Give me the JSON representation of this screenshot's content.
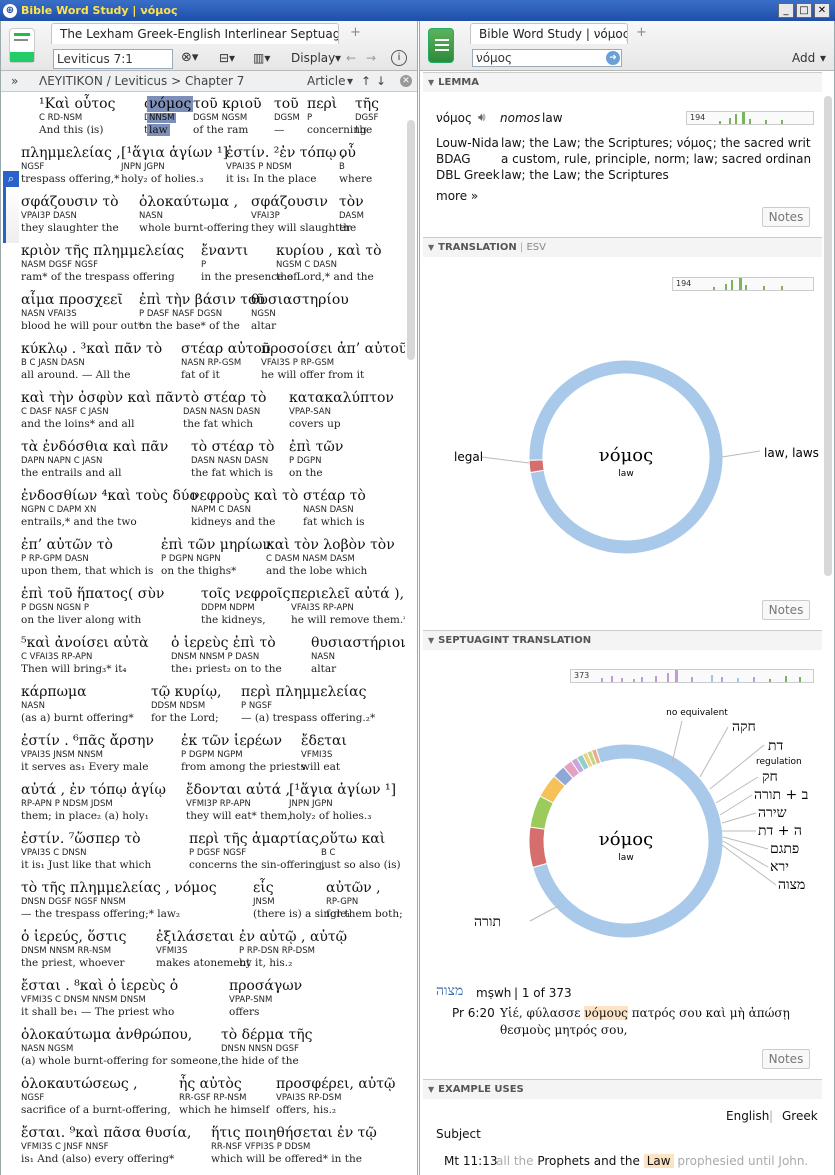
{
  "window": {
    "title": "Bible Word Study | νόμος"
  },
  "left": {
    "tab": "The Lexham Greek-English Interlinear Septuagint",
    "reference": "Leviticus 7:1",
    "display_label": "Display",
    "breadcrumb": "ΛΕΥΙΤΙΚΟΝ / Leviticus > Chapter 7",
    "article_label": "Article",
    "lines": [
      {
        "y": 96,
        "w": [
          {
            "x": 22,
            "g": "¹Καὶ οὗτος",
            "m": "C RD-NSM",
            "e": "And this (is)"
          },
          {
            "x": 127,
            "g": "ὁ",
            "m": "DNSM",
            "e": "the"
          },
          {
            "x": 130,
            "g": "νόμος",
            "m": "NNSM",
            "e": "law",
            "hl": true
          },
          {
            "x": 176,
            "g": "τοῦ κριοῦ",
            "m": "DGSM NGSM",
            "e": "of the ram"
          },
          {
            "x": 257,
            "g": "τοῦ",
            "m": "DGSM",
            "e": "—"
          },
          {
            "x": 290,
            "g": "περὶ",
            "m": "P",
            "e": "concerning"
          },
          {
            "x": 338,
            "g": "τῆς",
            "m": "DGSF",
            "e": "the"
          }
        ]
      },
      {
        "y": 145,
        "w": [
          {
            "x": 0,
            "g": "πλημμελείας ,",
            "m": "NGSF",
            "e": "trespass offering,*"
          },
          {
            "x": 100,
            "g": "[¹ἅγια ἁγίων ¹]",
            "m": "JNPN JGPN",
            "e": "holy₂ of holies.₃"
          },
          {
            "x": 205,
            "g": "ἐστίν. ²ἐν τόπῳ ,",
            "m": "VPAI3S P NDSM",
            "e": "it is₁ In the place"
          },
          {
            "x": 318,
            "g": "οὗ",
            "m": "B",
            "e": "where"
          }
        ]
      },
      {
        "y": 194,
        "w": [
          {
            "x": 0,
            "g": "σφάζουσιν τὸ",
            "m": "VPAI3P DASN",
            "e": "they slaughter the"
          },
          {
            "x": 118,
            "g": "ὁλοκαύτωμα ,",
            "m": "NASN",
            "e": "whole burnt-offering"
          },
          {
            "x": 230,
            "g": "σφάζουσιν",
            "m": "VFAI3P",
            "e": "they will slaughter"
          },
          {
            "x": 318,
            "g": "τὸν",
            "m": "DASM",
            "e": "the"
          }
        ]
      },
      {
        "y": 243,
        "w": [
          {
            "x": 0,
            "g": "κριὸν τῆς πλημμελείας",
            "m": "NASM DGSF NGSF",
            "e": "ram* of the trespass offering"
          },
          {
            "x": 180,
            "g": "ἔναντι",
            "m": "P",
            "e": "in the presence of"
          },
          {
            "x": 255,
            "g": "κυρίου , καὶ τὸ",
            "m": "NGSM C DASN",
            "e": "the Lord,* and the"
          }
        ]
      },
      {
        "y": 292,
        "w": [
          {
            "x": 0,
            "g": "αἷμα προσχεεῖ",
            "m": "NASN VFAI3S",
            "e": "blood he will pour out*"
          },
          {
            "x": 118,
            "g": "ἐπὶ τὴν βάσιν τοῦ",
            "m": "P DASF NASF DGSN",
            "e": "on the base* of the"
          },
          {
            "x": 230,
            "g": "θυσιαστηρίου",
            "m": "NGSN",
            "e": "altar"
          }
        ]
      },
      {
        "y": 341,
        "w": [
          {
            "x": 0,
            "g": "κύκλῳ . ³καὶ πᾶν τὸ",
            "m": "B C JASN DASN",
            "e": "all around. — All the"
          },
          {
            "x": 160,
            "g": "στέαρ αὐτοῦ",
            "m": "NASN RP-GSM",
            "e": "fat of it"
          },
          {
            "x": 240,
            "g": "προσοίσει ἀπ’ αὐτοῦ,",
            "m": "VFAI3S P RP-GSM",
            "e": "he will offer from it"
          }
        ]
      },
      {
        "y": 390,
        "w": [
          {
            "x": 0,
            "g": "καὶ τὴν ὀσφὺν καὶ πᾶν",
            "m": "C DASF NASF C JASN",
            "e": "and the loins* and all"
          },
          {
            "x": 162,
            "g": "τὸ στέαρ τὸ",
            "m": "DASN NASN DASN",
            "e": "the fat which"
          },
          {
            "x": 268,
            "g": "κατακαλύπτον",
            "m": "VPAP-SAN",
            "e": "covers up"
          }
        ]
      },
      {
        "y": 439,
        "w": [
          {
            "x": 0,
            "g": "τὰ ἐνδόσθια καὶ πᾶν",
            "m": "DAPN NAPN C JASN",
            "e": "the entrails and all"
          },
          {
            "x": 170,
            "g": "τὸ στέαρ τὸ",
            "m": "DASN NASN DASN",
            "e": "the fat which is"
          },
          {
            "x": 268,
            "g": "ἐπὶ τῶν",
            "m": "P DGPN",
            "e": "on the"
          }
        ]
      },
      {
        "y": 488,
        "w": [
          {
            "x": 0,
            "g": "ἐνδοσθίων ⁴καὶ τοὺς δύο",
            "m": "NGPN C DAPM XN",
            "e": "entrails,* and the two"
          },
          {
            "x": 170,
            "g": "νεφροὺς καὶ τὸ",
            "m": "NAPM C DASN",
            "e": "kidneys and the"
          },
          {
            "x": 282,
            "g": "στέαρ τὸ",
            "m": "NASN DASN",
            "e": "fat which is"
          }
        ]
      },
      {
        "y": 537,
        "w": [
          {
            "x": 0,
            "g": "ἐπ’ αὐτῶν τὸ",
            "m": "P RP-GPM DASN",
            "e": "upon them, that which is"
          },
          {
            "x": 140,
            "g": "ἐπὶ τῶν μηρίων",
            "m": "P DGPN NGPN",
            "e": "on the thighs*"
          },
          {
            "x": 245,
            "g": "καὶ τὸν λοβὸν τὸν",
            "m": "C DASM NASM DASM",
            "e": "and the lobe which"
          }
        ]
      },
      {
        "y": 586,
        "w": [
          {
            "x": 0,
            "g": "ἐπὶ τοῦ ἥπατος( σὺν",
            "m": "P DGSN NGSN P",
            "e": "on the liver along with"
          },
          {
            "x": 180,
            "g": "τοῖς νεφροῖς",
            "m": "DDPM NDPM",
            "e": "the kidneys,"
          },
          {
            "x": 270,
            "g": "περιελεῖ αὐτά ),",
            "m": "VFAI3S RP-APN",
            "e": "he will remove them.*"
          }
        ]
      },
      {
        "y": 635,
        "w": [
          {
            "x": 0,
            "g": "⁵καὶ ἀνοίσει αὐτὰ",
            "m": "C VFAI3S RP-APN",
            "e": "Then will bring₃* it₄"
          },
          {
            "x": 150,
            "g": "ὁ ἱερεὺς ἐπὶ τὸ",
            "m": "DNSM NNSM P DASN",
            "e": "the₁ priest₂ on to the"
          },
          {
            "x": 290,
            "g": "θυσιαστήριον",
            "m": "NASN",
            "e": "altar"
          }
        ]
      },
      {
        "y": 684,
        "w": [
          {
            "x": 0,
            "g": "κάρπωμα",
            "m": "NASN",
            "e": "(as a) burnt offering*"
          },
          {
            "x": 130,
            "g": "τῷ κυρίῳ,",
            "m": "DDSM NDSM",
            "e": "for the Lord;"
          },
          {
            "x": 220,
            "g": "περὶ πλημμελείας",
            "m": "P NGSF",
            "e": "— (a) trespass offering.₂*"
          }
        ]
      },
      {
        "y": 733,
        "w": [
          {
            "x": 0,
            "g": "ἐστίν . ⁶πᾶς ἄρσην",
            "m": "VPAI3S JNSM NNSM",
            "e": "it serves as₁ Every male"
          },
          {
            "x": 160,
            "g": "ἐκ τῶν ἱερέων",
            "m": "P DGPM NGPM",
            "e": "from among the priests"
          },
          {
            "x": 280,
            "g": "ἔδεται",
            "m": "VFMI3S",
            "e": "will eat"
          }
        ]
      },
      {
        "y": 782,
        "w": [
          {
            "x": 0,
            "g": "αὐτά , ἐν τόπῳ ἁγίῳ",
            "m": "RP-APN P NDSM JDSM",
            "e": "them; in place₂ (a) holy₁"
          },
          {
            "x": 165,
            "g": "ἔδονται αὐτά ,",
            "m": "VFMI3P RP-APN",
            "e": "they will eat* them,"
          },
          {
            "x": 268,
            "g": "[¹ἅγια ἁγίων ¹]",
            "m": "JNPN JGPN",
            "e": "holy₂ of holies.₃"
          }
        ]
      },
      {
        "y": 831,
        "w": [
          {
            "x": 0,
            "g": "ἐστίν. ⁷ὥσπερ τὸ",
            "m": "VPAI3S C DNSN",
            "e": "it is₁ Just like that which"
          },
          {
            "x": 168,
            "g": "περὶ τῆς ἁμαρτίας,",
            "m": "P DGSF NGSF",
            "e": "concerns the sin-offering,"
          },
          {
            "x": 300,
            "g": "οὕτω καὶ",
            "m": "B C",
            "e": "just so also (is)"
          }
        ]
      },
      {
        "y": 880,
        "w": [
          {
            "x": 0,
            "g": "τὸ τῆς πλημμελείας , νόμος",
            "m": "DNSN DGSF NGSF NNSM",
            "e": "— the trespass offering;* law₂"
          },
          {
            "x": 232,
            "g": "εἷς",
            "m": "JNSM",
            "e": "(there is) a single₁"
          },
          {
            "x": 305,
            "g": "αὐτῶν ,",
            "m": "RP-GPN",
            "e": "for them both;"
          }
        ]
      },
      {
        "y": 929,
        "w": [
          {
            "x": 0,
            "g": "ὁ ἱερεύς, ὅστις",
            "m": "DNSM NNSM RR-NSM",
            "e": "the priest, whoever"
          },
          {
            "x": 135,
            "g": "ἐξιλάσεται",
            "m": "VFMI3S",
            "e": "makes atonement"
          },
          {
            "x": 218,
            "g": "ἐν αὐτῷ , αὐτῷ",
            "m": "P RP-DSN RP-DSM",
            "e": "by it, his.₂"
          }
        ]
      },
      {
        "y": 978,
        "w": [
          {
            "x": 0,
            "g": "ἔσται . ⁸καὶ ὁ ἱερεὺς ὁ",
            "m": "VFMI3S C DNSM NNSM DNSM",
            "e": "it shall be₁ — The priest who"
          },
          {
            "x": 208,
            "g": "προσάγων",
            "m": "VPAP-SNM",
            "e": "offers"
          }
        ]
      },
      {
        "y": 1027,
        "w": [
          {
            "x": 0,
            "g": "ὁλοκαύτωμα ἀνθρώπου,",
            "m": "NASN NGSM",
            "e": "(a) whole burnt-offering for someone,"
          },
          {
            "x": 200,
            "g": "τὸ δέρμα τῆς",
            "m": "DNSN NNSN DGSF",
            "e": "the hide of the"
          }
        ]
      },
      {
        "y": 1076,
        "w": [
          {
            "x": 0,
            "g": "ὁλοκαυτώσεως ,",
            "m": "NGSF",
            "e": "sacrifice of a burnt-offering,"
          },
          {
            "x": 158,
            "g": "ἧς αὐτὸς",
            "m": "RR-GSF RP-NSM",
            "e": "which he himself"
          },
          {
            "x": 255,
            "g": "προσφέρει, αὐτῷ",
            "m": "VPAI3S RP-DSM",
            "e": "offers, his.₂"
          }
        ]
      },
      {
        "y": 1125,
        "w": [
          {
            "x": 0,
            "g": "ἔσται. ⁹καὶ πᾶσα θυσία,",
            "m": "VFMI3S C JNSF NNSF",
            "e": "is₁ And (also) every offering*"
          },
          {
            "x": 190,
            "g": "ἥτις ποιηθήσεται ἐν τῷ",
            "m": "RR-NSF VFPI3S P DDSM",
            "e": "which will be offered* in the"
          }
        ]
      }
    ]
  },
  "right": {
    "tab": "Bible Word Study | νόμος",
    "search_value": "νόμος",
    "add_label": "Add",
    "lemma": {
      "section": "LEMMA",
      "word": "νόμος",
      "translit": "nomos",
      "gloss": "law",
      "count": "194",
      "defs": [
        {
          "src": "Louw-Nida",
          "text": "law; the Law; the Scriptures; νόμος; the sacred writing..."
        },
        {
          "src": "BDAG",
          "text": "a custom, rule, principle, norm;  law; sacred ordinance"
        },
        {
          "src": "DBL Greek",
          "text": "law; the Law; the Scriptures"
        }
      ],
      "more": "more »"
    },
    "notes_label": "Notes",
    "translation": {
      "section": "TRANSLATION",
      "version": "ESV",
      "count": "194",
      "center": "νόμος",
      "center_sub": "law",
      "label_left": "legal",
      "label_right": "law, laws"
    },
    "septuagint": {
      "section": "SEPTUAGINT TRANSLATION",
      "count": "373",
      "center": "νόμος",
      "center_sub": "law",
      "labels": [
        "no equivalent",
        "חקה",
        "דת",
        "regulation",
        "חק",
        "ב + תורה",
        "שירה",
        "ה + דת",
        "פתגם",
        "ירא",
        "מצוה",
        "תורה"
      ],
      "ref_word": "מצוה",
      "ref_translit": "mṣwh",
      "ref_count": "1 of 373",
      "ref_cite": "Pr 6:20",
      "ref_pre": "Υἱέ, φύλασσε",
      "ref_hl": "νόμους",
      "ref_post": "πατρός σου καὶ μὴ ἀπώσῃ",
      "ref_line2": "θεσμοὺς μητρός σου,"
    },
    "examples": {
      "section": "EXAMPLE USES",
      "lang1": "English",
      "lang2": "Greek",
      "subject": "Subject",
      "cite": "Mt 11:13",
      "pre": "all the",
      "mid": "Prophets and the",
      "hl": "Law",
      "post": "prophesied until John."
    }
  },
  "chart_data": [
    {
      "type": "pie",
      "title": "",
      "series": [
        {
          "name": "",
          "labels": [
            "law, laws",
            "legal"
          ],
          "values": [
            98,
            2
          ]
        }
      ]
    },
    {
      "type": "pie",
      "title": "",
      "series": [
        {
          "name": "",
          "labels": [
            "תורה",
            "no equivalent",
            "חקה",
            "דת",
            "חק",
            "ב + תורה",
            "שירה",
            "ה + דת",
            "פתגם",
            "ירא",
            "מצוה"
          ],
          "values": [
            282,
            25,
            20,
            15,
            8,
            6,
            4,
            4,
            3,
            3,
            3
          ]
        }
      ]
    }
  ]
}
